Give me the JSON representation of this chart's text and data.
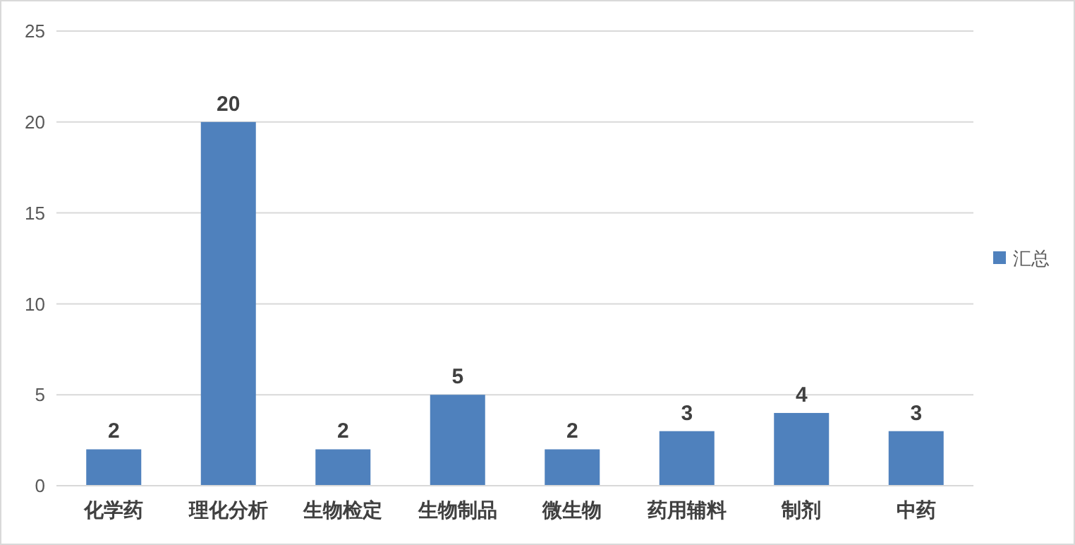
{
  "chart_data": {
    "type": "bar",
    "categories": [
      "化学药",
      "理化分析",
      "生物检定",
      "生物制品",
      "微生物",
      "药用辅料",
      "制剂",
      "中药"
    ],
    "series": [
      {
        "name": "汇总",
        "color": "#4f81bd",
        "values": [
          2,
          20,
          2,
          5,
          2,
          3,
          4,
          3
        ]
      }
    ],
    "ylim": [
      0,
      25
    ],
    "yticks": [
      0,
      5,
      10,
      15,
      20,
      25
    ],
    "grid": "y",
    "legend": "right",
    "data_labels": true
  }
}
